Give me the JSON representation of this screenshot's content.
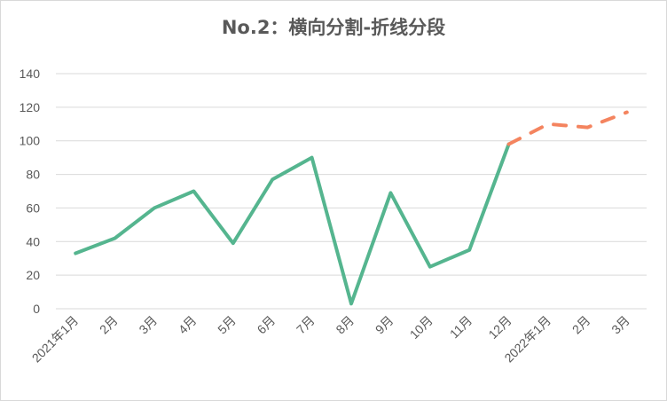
{
  "chart_data": {
    "type": "line",
    "title": "No.2：横向分割-折线分段",
    "xlabel": "",
    "ylabel": "",
    "categories": [
      "2021年1月",
      "2月",
      "3月",
      "4月",
      "5月",
      "6月",
      "7月",
      "8月",
      "9月",
      "10月",
      "11月",
      "12月",
      "2022年1月",
      "2月",
      "3月"
    ],
    "y_ticks": [
      "0",
      "20",
      "40",
      "60",
      "80",
      "100",
      "120",
      "140"
    ],
    "ylim": [
      0,
      140
    ],
    "grid": true,
    "legend": "none",
    "series": [
      {
        "style": "solid",
        "color": "#55b58f",
        "points": [
          {
            "x": "2021年1月",
            "y": 33
          },
          {
            "x": "2月",
            "y": 42
          },
          {
            "x": "3月",
            "y": 60
          },
          {
            "x": "4月",
            "y": 70
          },
          {
            "x": "5月",
            "y": 39
          },
          {
            "x": "6月",
            "y": 77
          },
          {
            "x": "7月",
            "y": 90
          },
          {
            "x": "8月",
            "y": 3
          },
          {
            "x": "9月",
            "y": 69
          },
          {
            "x": "10月",
            "y": 25
          },
          {
            "x": "11月",
            "y": 35
          },
          {
            "x": "12月",
            "y": 98
          }
        ]
      },
      {
        "style": "dashed",
        "color": "#f4845f",
        "points": [
          {
            "x": "12月",
            "y": 98
          },
          {
            "x": "2022年1月",
            "y": 110
          },
          {
            "x": "2月",
            "y": 108
          },
          {
            "x": "3月",
            "y": 117
          }
        ]
      }
    ]
  }
}
